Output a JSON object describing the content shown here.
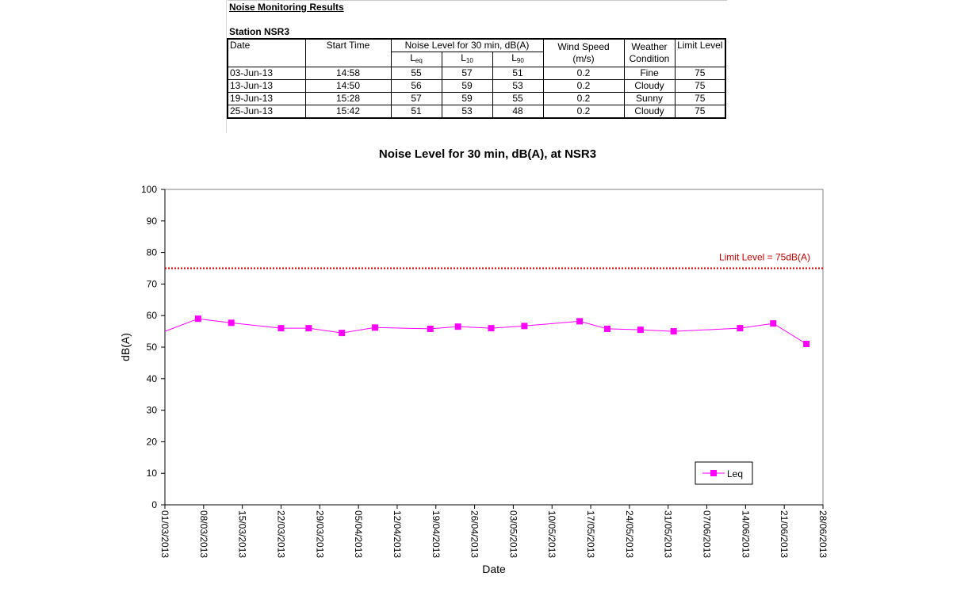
{
  "header": {
    "sheet_title": "Noise Monitoring Results",
    "station": "Station NSR3"
  },
  "table": {
    "headers": {
      "date": "Date",
      "start_time": "Start Time",
      "noise_level": "Noise Level for 30 min, dB(A)",
      "leq": "L",
      "leq_sub": "eq",
      "l10": "L",
      "l10_sub": "10",
      "l90": "L",
      "l90_sub": "90",
      "wind_speed": "Wind Speed",
      "wind_unit": "(m/s)",
      "weather_1": "Weather",
      "weather_2": "Condition",
      "limit_level": "Limit Level"
    },
    "rows": [
      {
        "date": "03-Jun-13",
        "start": "14:58",
        "leq": "55",
        "l10": "57",
        "l90": "51",
        "wind": "0.2",
        "weather": "Fine",
        "limit": "75"
      },
      {
        "date": "13-Jun-13",
        "start": "14:50",
        "leq": "56",
        "l10": "59",
        "l90": "53",
        "wind": "0.2",
        "weather": "Cloudy",
        "limit": "75"
      },
      {
        "date": "19-Jun-13",
        "start": "15:28",
        "leq": "57",
        "l10": "59",
        "l90": "55",
        "wind": "0.2",
        "weather": "Sunny",
        "limit": "75"
      },
      {
        "date": "25-Jun-13",
        "start": "15:42",
        "leq": "51",
        "l10": "53",
        "l90": "48",
        "wind": "0.2",
        "weather": "Cloudy",
        "limit": "75"
      }
    ]
  },
  "chart_data": {
    "type": "line",
    "title": "Noise Level for 30 min, dB(A), at NSR3",
    "xlabel": "Date",
    "ylabel": "dB(A)",
    "ylim": [
      0,
      100
    ],
    "yticks": [
      0,
      10,
      20,
      30,
      40,
      50,
      60,
      70,
      80,
      90,
      100
    ],
    "xlim": [
      "2013-03-01",
      "2013-06-28"
    ],
    "xticks": [
      "01/03/2013",
      "08/03/2013",
      "15/03/2013",
      "22/03/2013",
      "29/03/2013",
      "05/04/2013",
      "12/04/2013",
      "19/04/2013",
      "26/04/2013",
      "03/05/2013",
      "10/05/2013",
      "17/05/2013",
      "24/05/2013",
      "31/05/2013",
      "07/06/2013",
      "14/06/2013",
      "21/06/2013",
      "28/06/2013"
    ],
    "grid": false,
    "legend": {
      "position": "bottom-right",
      "entries": [
        "Leq"
      ]
    },
    "limit_line": {
      "value": 75,
      "label": "Limit Level  = 75dB(A)",
      "color": "#c00000"
    },
    "series": [
      {
        "name": "Leq",
        "color": "#ff00ff",
        "line_start": {
          "x": "2013-03-01",
          "y": 55
        },
        "points": [
          {
            "x": "2013-03-07",
            "y": 59
          },
          {
            "x": "2013-03-13",
            "y": 57.7
          },
          {
            "x": "2013-03-22",
            "y": 56
          },
          {
            "x": "2013-03-27",
            "y": 56
          },
          {
            "x": "2013-04-02",
            "y": 54.5
          },
          {
            "x": "2013-04-08",
            "y": 56.2
          },
          {
            "x": "2013-04-18",
            "y": 55.8
          },
          {
            "x": "2013-04-23",
            "y": 56.5
          },
          {
            "x": "2013-04-29",
            "y": 56
          },
          {
            "x": "2013-05-05",
            "y": 56.7
          },
          {
            "x": "2013-05-15",
            "y": 58.2
          },
          {
            "x": "2013-05-20",
            "y": 55.8
          },
          {
            "x": "2013-05-26",
            "y": 55.5
          },
          {
            "x": "2013-06-01",
            "y": 55
          },
          {
            "x": "2013-06-13",
            "y": 56
          },
          {
            "x": "2013-06-19",
            "y": 57.5
          },
          {
            "x": "2013-06-25",
            "y": 51
          }
        ]
      }
    ]
  }
}
